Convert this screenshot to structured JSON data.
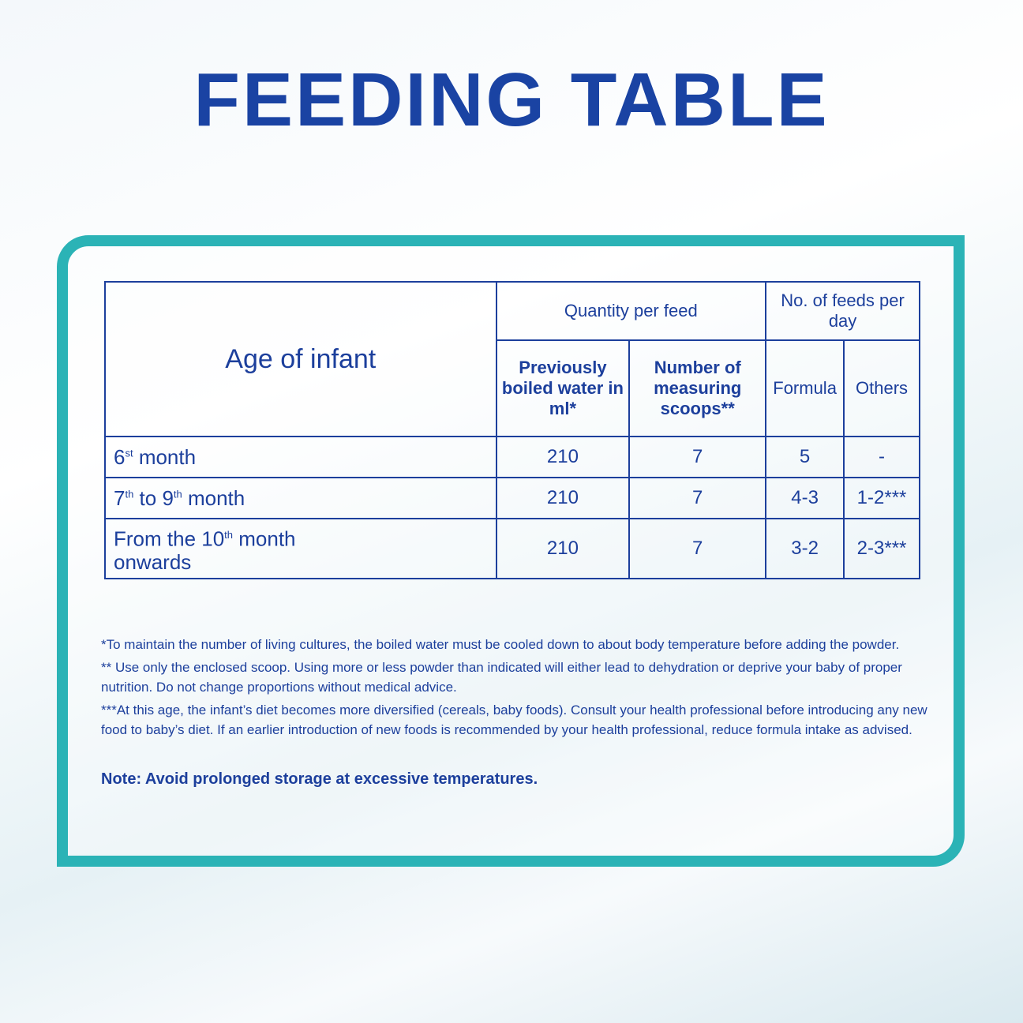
{
  "header": {
    "title": "FEEDING TABLE"
  },
  "table": {
    "age_header": "Age of infant",
    "quantity_header": "Quantity per feed",
    "feeds_header": "No. of feeds per day",
    "subheaders": [
      "Previously boiled water in ml*",
      "Number of measuring scoops**",
      "Formula",
      "Others"
    ],
    "rows": [
      {
        "age": [
          "6",
          "st",
          " month"
        ],
        "cells": [
          "210",
          "7",
          "5",
          "-"
        ]
      },
      {
        "age": [
          "7",
          "th",
          " to 9",
          "th",
          " month"
        ],
        "cells": [
          "210",
          "7",
          "4-3",
          "1-2***"
        ]
      },
      {
        "age": [
          "From the 10",
          "th",
          " month onwards"
        ],
        "cells": [
          "210",
          "7",
          "3-2",
          "2-3***"
        ]
      }
    ]
  },
  "footnotes": [
    "*To maintain the number of living cultures, the boiled water must be cooled down to about body temperature before adding the powder.",
    "** Use only the enclosed scoop. Using more or less powder than indicated will either lead to dehydration or deprive your baby of proper nutrition. Do not change proportions without medical advice.",
    "***At this age, the infant’s diet becomes more diversified (cereals, baby foods). Consult your health professional before introducing any new food to baby’s diet. If an earlier introduction of new foods is recommended by your health professional, reduce formula intake as advised."
  ],
  "note": "Note: Avoid prolonged storage at excessive temperatures."
}
